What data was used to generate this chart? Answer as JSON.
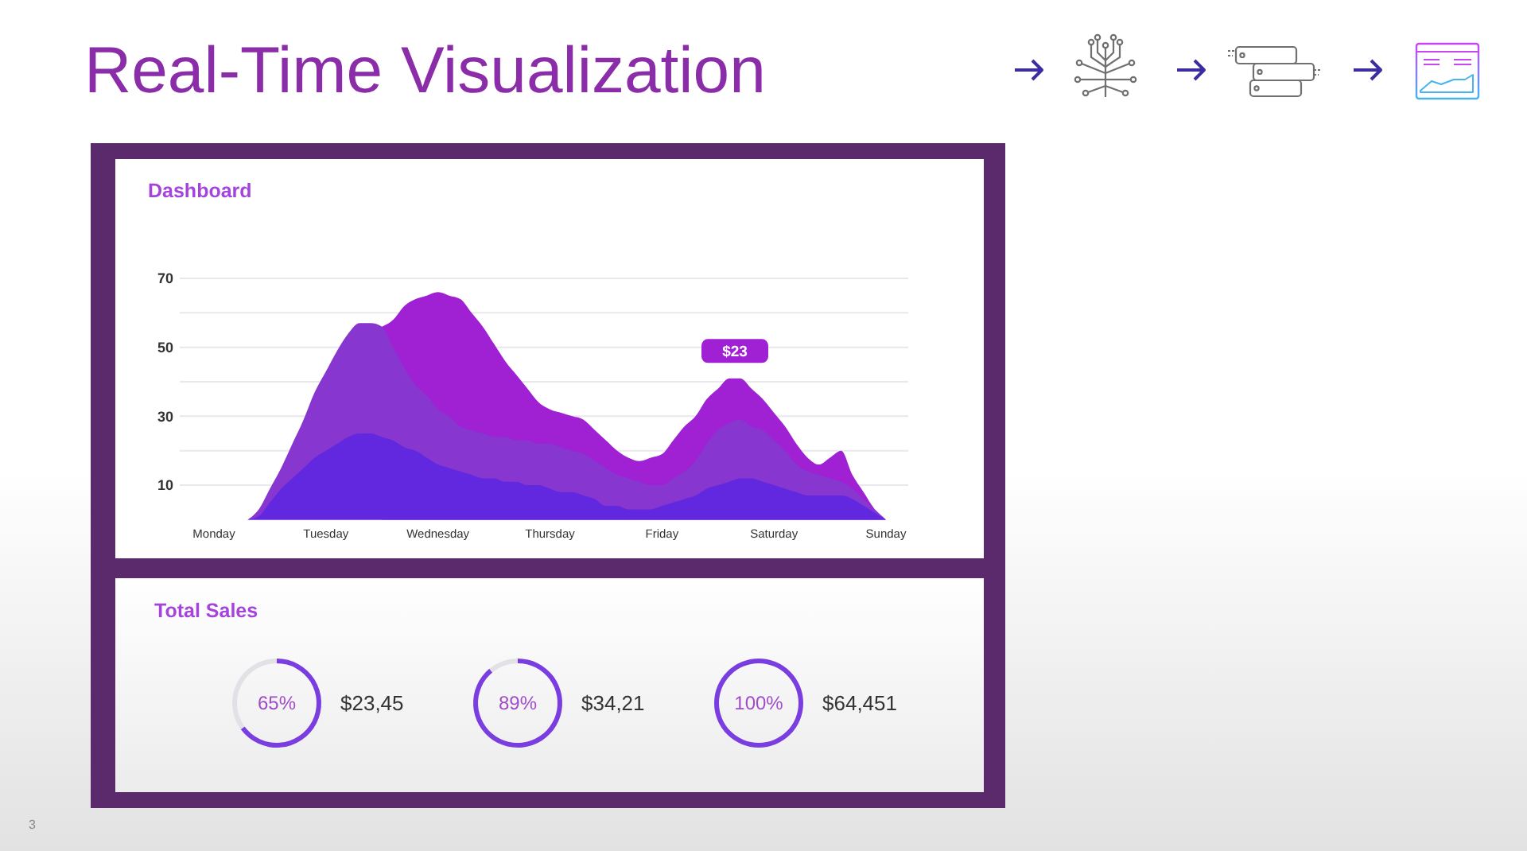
{
  "chart_data": [
    {
      "type": "area",
      "title": "Real-Time Visualization",
      "subtitle": "Dashboard",
      "categories": [
        "Monday",
        null,
        null,
        null,
        null,
        null,
        null,
        null,
        null,
        null,
        "Tuesday",
        null,
        null,
        null,
        null,
        null,
        null,
        null,
        null,
        null,
        "Wednesday",
        null,
        null,
        null,
        null,
        null,
        null,
        null,
        null,
        null,
        "Thursday",
        null,
        null,
        null,
        null,
        null,
        null,
        null,
        null,
        null,
        "Friday",
        null,
        null,
        null,
        null,
        null,
        null,
        null,
        null,
        null,
        "Saturday",
        null,
        null,
        null,
        null,
        null,
        null,
        null,
        null,
        null,
        "Sunday"
      ],
      "ylim": [
        0,
        70
      ],
      "yticks": [
        10,
        {
          "value": 20,
          "label": null
        },
        30,
        {
          "value": 40,
          "label": null
        },
        50,
        {
          "value": 60,
          "label": null
        },
        70
      ],
      "grid": "y",
      "series": [
        {
          "color": "#a020d4",
          "values": [
            null,
            null,
            null,
            null,
            null,
            null,
            null,
            null,
            null,
            null,
            null,
            null,
            null,
            null,
            null,
            56,
            58,
            62,
            64,
            65,
            66,
            65,
            64,
            60,
            56,
            51,
            46,
            42,
            38,
            34,
            32,
            31,
            30,
            29,
            26,
            23,
            20,
            18,
            17,
            18,
            19,
            23,
            27,
            30,
            35,
            38,
            41,
            41,
            38,
            35,
            31,
            27,
            22,
            18,
            16,
            18,
            20,
            13,
            8,
            3,
            0
          ]
        },
        {
          "color": "#8736d0",
          "values": [
            null,
            null,
            null,
            0,
            3,
            9,
            15,
            22,
            29,
            37,
            43,
            49,
            54,
            57,
            57,
            56,
            50,
            44,
            39,
            36,
            32,
            30,
            27,
            26,
            25,
            24,
            24,
            23,
            23,
            22,
            22,
            21,
            20,
            19,
            17,
            15,
            13,
            12,
            11,
            10,
            10,
            12,
            14,
            17,
            22,
            26,
            28,
            29,
            27,
            26,
            23,
            20,
            16,
            14,
            13,
            12,
            11,
            9,
            6,
            3,
            0
          ]
        },
        {
          "color": "#6228e0",
          "values": [
            null,
            null,
            null,
            0,
            1,
            5,
            9,
            12,
            15,
            18,
            20,
            22,
            24,
            25,
            25,
            24,
            23,
            21,
            20,
            18,
            16,
            15,
            14,
            13,
            12,
            12,
            11,
            11,
            10,
            10,
            9,
            8,
            8,
            7,
            6,
            4,
            4,
            3,
            3,
            3,
            4,
            5,
            6,
            7,
            9,
            10,
            11,
            12,
            12,
            11,
            10,
            9,
            8,
            7,
            7,
            7,
            7,
            6,
            4,
            2,
            0
          ]
        }
      ],
      "annotations": [
        {
          "text": "$23",
          "y": 42
        },
        "3"
      ]
    },
    {
      "type": "donut",
      "title": "Total Sales",
      "categories": [
        null,
        null
      ],
      "values": [
        65,
        35
      ],
      "colors": [
        "#7a3ee0",
        "#e2e2e6"
      ],
      "value_labels": [
        "65%",
        null
      ],
      "annotations": [
        "$23,45"
      ]
    },
    {
      "type": "donut",
      "categories": [
        null,
        null
      ],
      "values": [
        89,
        11
      ],
      "colors": [
        "#7a3ee0",
        "#e2e2e6"
      ],
      "value_labels": [
        "89%",
        null
      ],
      "annotations": [
        "$34,21"
      ]
    },
    {
      "type": "donut",
      "categories": [
        null
      ],
      "values": [
        100
      ],
      "colors": [
        "#7a3ee0"
      ],
      "value_labels": [
        "100%"
      ],
      "annotations": [
        "$64,451"
      ]
    }
  ]
}
